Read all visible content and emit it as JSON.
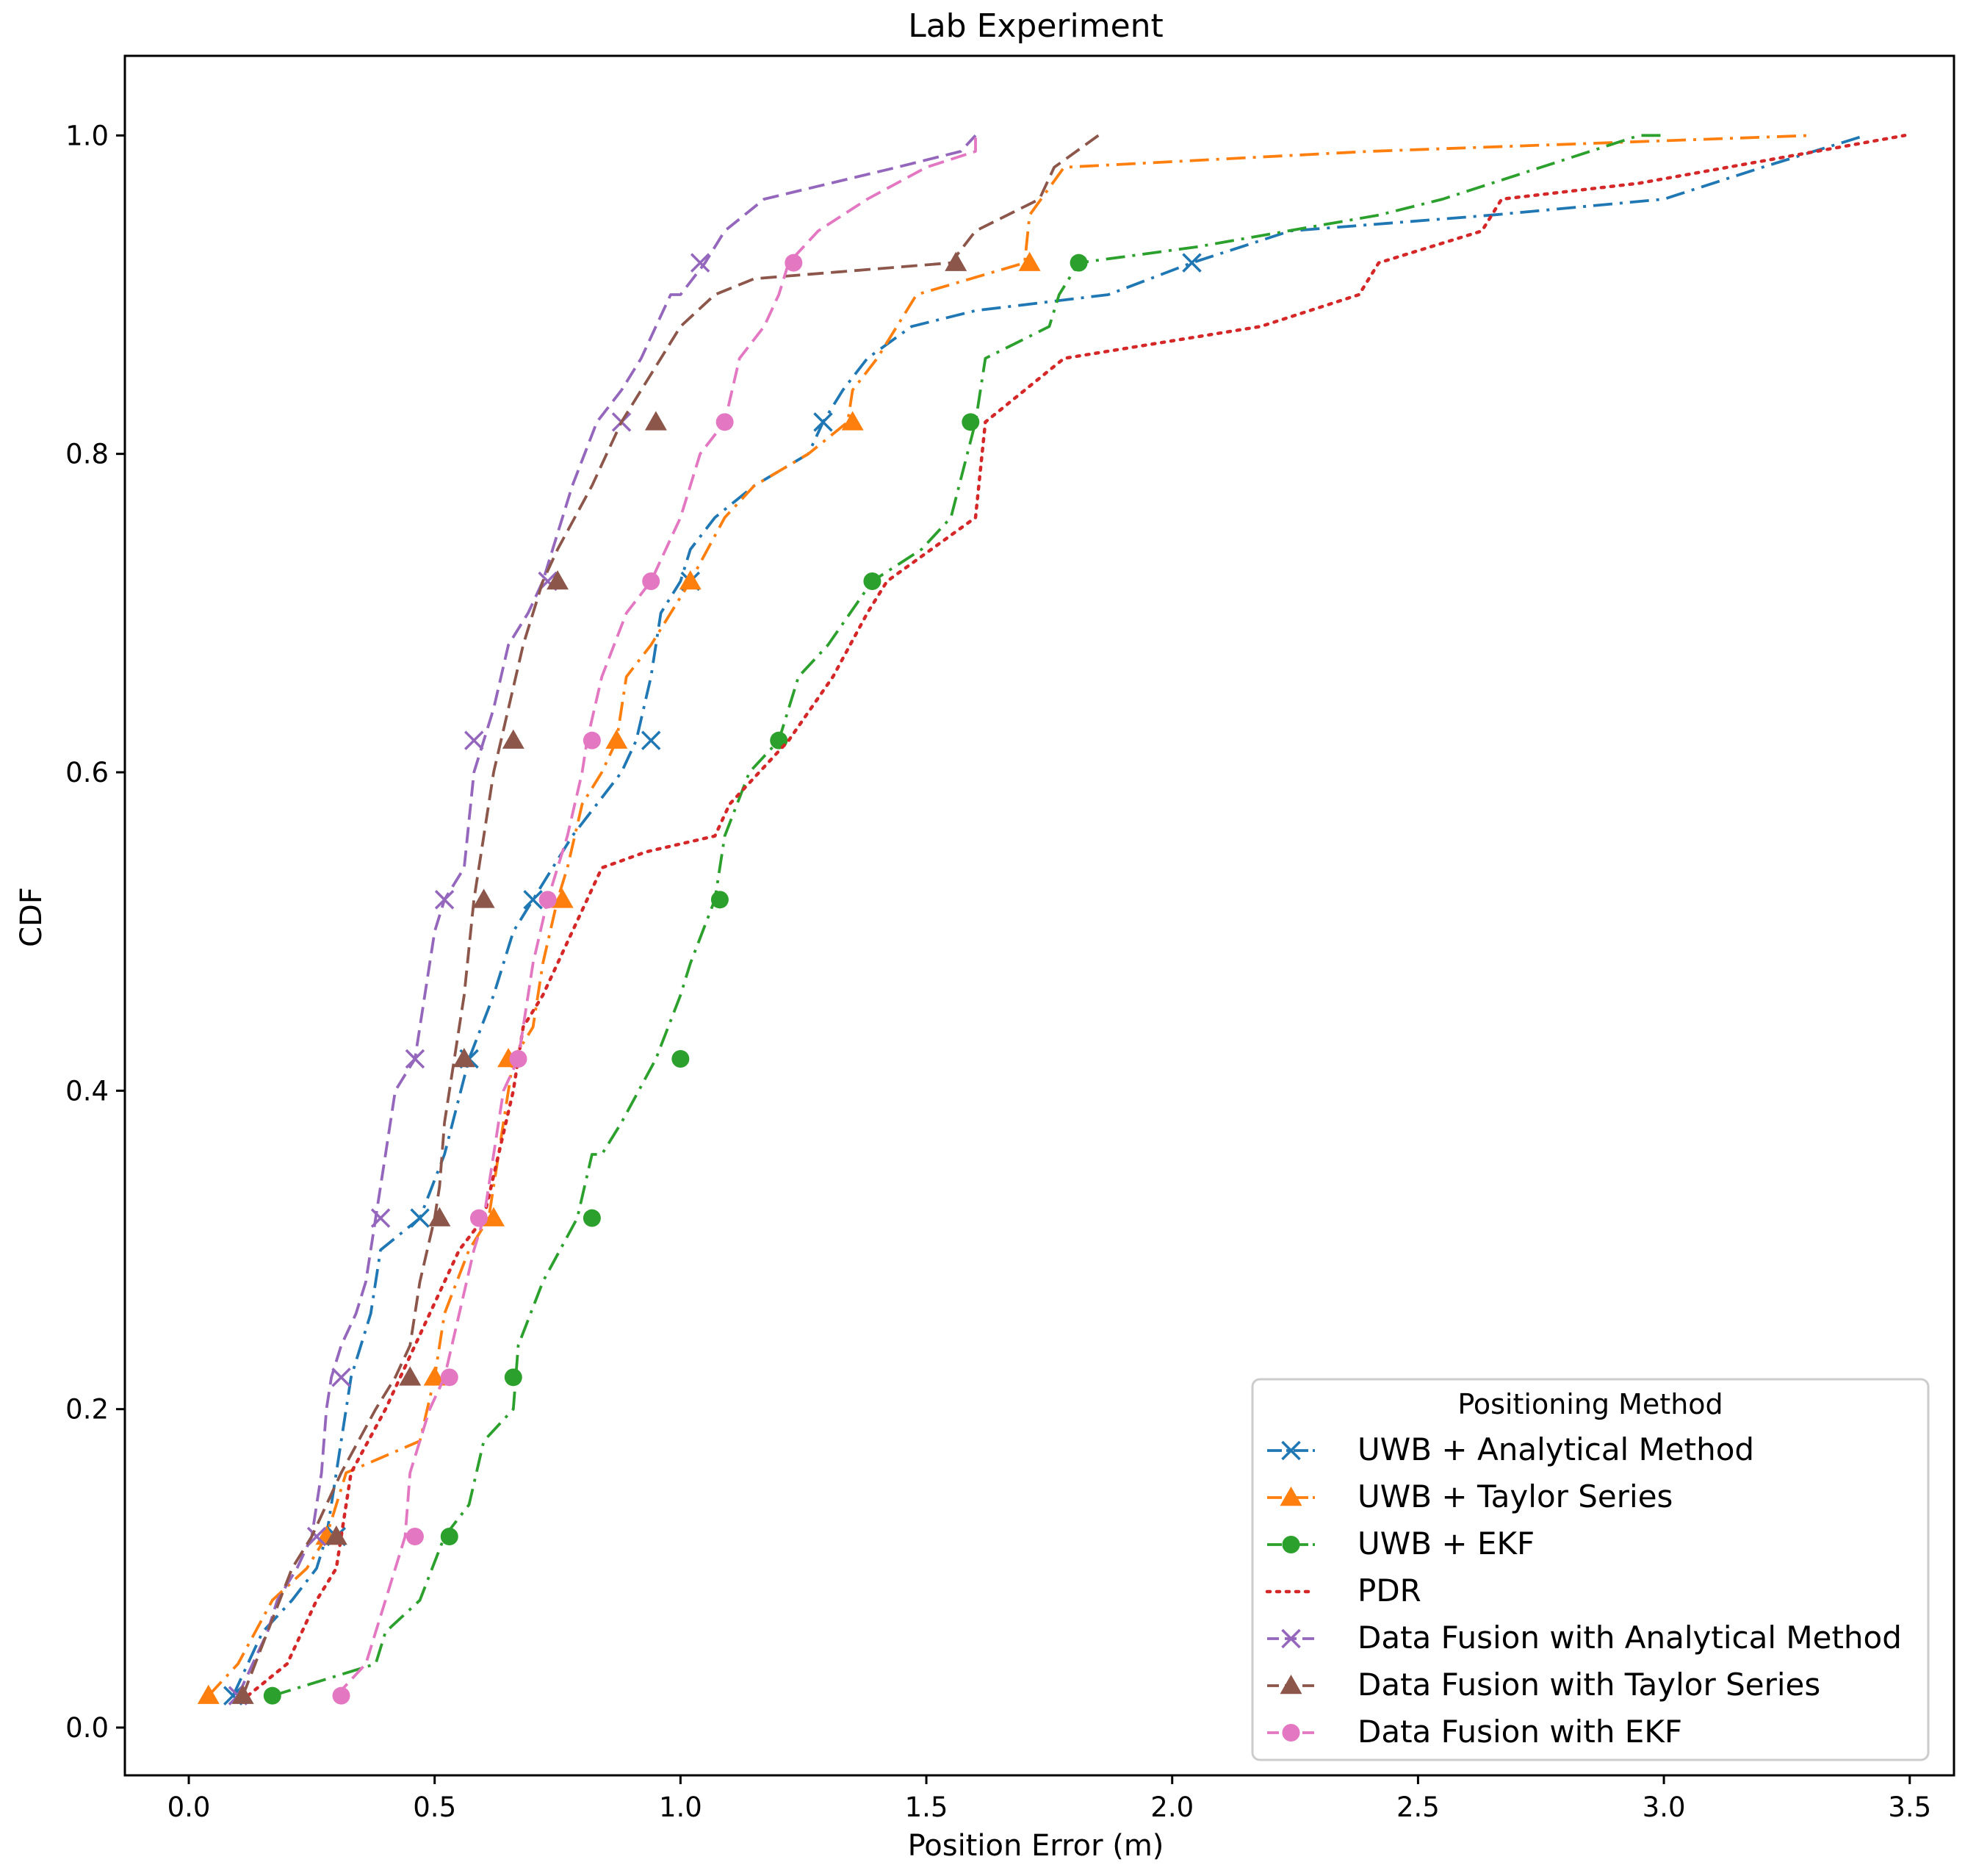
{
  "chart_data": {
    "type": "line",
    "title": "Lab Experiment",
    "xlabel": "Position Error (m)",
    "ylabel": "CDF",
    "xlim": [
      -0.13,
      3.59
    ],
    "ylim": [
      -0.03,
      1.05
    ],
    "xticks": [
      0.0,
      0.5,
      1.0,
      1.5,
      2.0,
      2.5,
      3.0,
      3.5
    ],
    "xtick_labels": [
      "0.0",
      "0.5",
      "1.0",
      "1.5",
      "2.0",
      "2.5",
      "3.0",
      "3.5"
    ],
    "yticks": [
      0.0,
      0.2,
      0.4,
      0.6,
      0.8,
      1.0
    ],
    "ytick_labels": [
      "0.0",
      "0.2",
      "0.4",
      "0.6",
      "0.8",
      "1.0"
    ],
    "grid": false,
    "legend": {
      "title": "Positioning Method",
      "placement": "bottom-right"
    },
    "series": [
      {
        "name": "UWB + Analytical Method",
        "color": "#1f77b4",
        "linestyle": "dashdot",
        "marker": "x",
        "x": [
          0.09,
          0.12,
          0.15,
          0.21,
          0.26,
          0.28,
          0.3,
          0.33,
          0.37,
          0.39,
          0.47,
          0.52,
          0.57,
          0.62,
          0.66,
          0.7,
          0.74,
          0.78,
          0.83,
          0.88,
          0.91,
          0.94,
          0.96,
          1.0,
          1.02,
          1.07,
          1.15,
          1.26,
          1.29,
          1.33,
          1.38,
          1.47,
          1.6,
          1.87,
          2.04,
          2.24,
          2.65,
          3.0,
          3.2,
          3.41
        ],
        "y": [
          0.02,
          0.04,
          0.06,
          0.08,
          0.1,
          0.12,
          0.16,
          0.22,
          0.26,
          0.3,
          0.32,
          0.36,
          0.42,
          0.46,
          0.5,
          0.52,
          0.54,
          0.56,
          0.58,
          0.6,
          0.62,
          0.66,
          0.7,
          0.72,
          0.74,
          0.76,
          0.78,
          0.8,
          0.82,
          0.84,
          0.86,
          0.88,
          0.89,
          0.9,
          0.92,
          0.94,
          0.95,
          0.96,
          0.98,
          1.0
        ],
        "marker_x": [
          0.09,
          0.3,
          0.47,
          0.57,
          0.7,
          0.94,
          1.02,
          1.29,
          2.04
        ],
        "marker_y": [
          0.02,
          0.12,
          0.32,
          0.42,
          0.52,
          0.62,
          0.72,
          0.82,
          0.92
        ]
      },
      {
        "name": "UWB + Taylor Series",
        "color": "#ff7f0e",
        "linestyle": "dashdot",
        "marker": "triangle",
        "x": [
          0.04,
          0.1,
          0.17,
          0.24,
          0.28,
          0.3,
          0.32,
          0.47,
          0.5,
          0.52,
          0.57,
          0.61,
          0.64,
          0.66,
          0.7,
          0.72,
          0.75,
          0.77,
          0.8,
          0.84,
          0.87,
          0.89,
          0.94,
          1.02,
          1.09,
          1.15,
          1.26,
          1.34,
          1.35,
          1.4,
          1.44,
          1.48,
          1.7,
          1.71,
          1.78,
          2.4,
          3.3
        ],
        "y": [
          0.02,
          0.04,
          0.08,
          0.1,
          0.12,
          0.14,
          0.16,
          0.18,
          0.22,
          0.26,
          0.3,
          0.32,
          0.38,
          0.42,
          0.44,
          0.48,
          0.52,
          0.54,
          0.58,
          0.6,
          0.62,
          0.66,
          0.68,
          0.72,
          0.76,
          0.78,
          0.8,
          0.82,
          0.84,
          0.86,
          0.88,
          0.9,
          0.92,
          0.95,
          0.98,
          0.99,
          1.0
        ],
        "marker_x": [
          0.04,
          0.28,
          0.62,
          0.65,
          0.76,
          0.87,
          1.02,
          1.35,
          1.71
        ],
        "marker_y": [
          0.02,
          0.12,
          0.32,
          0.42,
          0.52,
          0.62,
          0.72,
          0.82,
          0.92
        ],
        "marker_x_extra": [
          0.5
        ],
        "marker_y_extra": [
          0.22
        ]
      },
      {
        "name": "UWB + EKF",
        "color": "#2ca02c",
        "linestyle": "dashdot",
        "marker": "circle",
        "x": [
          0.17,
          0.38,
          0.4,
          0.47,
          0.52,
          0.57,
          0.6,
          0.66,
          0.67,
          0.72,
          0.79,
          0.82,
          0.84,
          0.88,
          0.95,
          1.0,
          1.02,
          1.07,
          1.09,
          1.14,
          1.2,
          1.24,
          1.3,
          1.39,
          1.49,
          1.55,
          1.6,
          1.62,
          1.75,
          1.77,
          1.81,
          2.05,
          2.42,
          2.55,
          2.75,
          2.95,
          3.0
        ],
        "y": [
          0.02,
          0.04,
          0.06,
          0.08,
          0.12,
          0.14,
          0.18,
          0.2,
          0.24,
          0.28,
          0.32,
          0.36,
          0.36,
          0.38,
          0.42,
          0.46,
          0.48,
          0.52,
          0.56,
          0.6,
          0.62,
          0.66,
          0.68,
          0.72,
          0.74,
          0.76,
          0.82,
          0.86,
          0.88,
          0.9,
          0.92,
          0.93,
          0.95,
          0.96,
          0.98,
          1.0,
          1.0
        ],
        "marker_x": [
          0.17,
          0.53,
          0.66,
          0.82,
          1.0,
          1.08,
          1.2,
          1.39,
          1.59,
          1.81
        ],
        "marker_y": [
          0.02,
          0.12,
          0.22,
          0.32,
          0.42,
          0.52,
          0.62,
          0.72,
          0.82,
          0.92
        ]
      },
      {
        "name": "PDR",
        "color": "#d62728",
        "linestyle": "dotted",
        "marker": "none",
        "x": [
          0.12,
          0.2,
          0.26,
          0.3,
          0.33,
          0.4,
          0.46,
          0.55,
          0.6,
          0.63,
          0.66,
          0.68,
          0.72,
          0.78,
          0.84,
          0.93,
          1.07,
          1.1,
          1.16,
          1.22,
          1.31,
          1.38,
          1.42,
          1.6,
          1.62,
          1.78,
          2.18,
          2.38,
          2.42,
          2.63,
          2.67,
          2.95,
          3.49
        ],
        "y": [
          0.02,
          0.04,
          0.08,
          0.1,
          0.16,
          0.2,
          0.24,
          0.3,
          0.32,
          0.36,
          0.4,
          0.44,
          0.46,
          0.5,
          0.54,
          0.55,
          0.56,
          0.58,
          0.6,
          0.62,
          0.66,
          0.7,
          0.72,
          0.76,
          0.82,
          0.86,
          0.88,
          0.9,
          0.92,
          0.94,
          0.96,
          0.97,
          1.0
        ],
        "marker_x": [],
        "marker_y": []
      },
      {
        "name": "Data Fusion with Analytical Method",
        "color": "#9467bd",
        "linestyle": "dashed",
        "marker": "x",
        "x": [
          0.1,
          0.13,
          0.16,
          0.18,
          0.22,
          0.25,
          0.27,
          0.28,
          0.29,
          0.31,
          0.34,
          0.36,
          0.38,
          0.4,
          0.42,
          0.46,
          0.48,
          0.5,
          0.52,
          0.56,
          0.58,
          0.6,
          0.62,
          0.65,
          0.69,
          0.72,
          0.74,
          0.78,
          0.83,
          0.88,
          0.92,
          0.95,
          0.98,
          1.0,
          1.05,
          1.09,
          1.17,
          1.44,
          1.57,
          1.6
        ],
        "y": [
          0.02,
          0.04,
          0.06,
          0.08,
          0.1,
          0.12,
          0.16,
          0.2,
          0.22,
          0.24,
          0.26,
          0.28,
          0.32,
          0.36,
          0.4,
          0.42,
          0.46,
          0.5,
          0.52,
          0.54,
          0.6,
          0.62,
          0.64,
          0.68,
          0.7,
          0.72,
          0.74,
          0.78,
          0.82,
          0.84,
          0.86,
          0.88,
          0.9,
          0.9,
          0.92,
          0.94,
          0.96,
          0.98,
          0.99,
          1.0
        ],
        "marker_x": [
          0.1,
          0.26,
          0.31,
          0.39,
          0.46,
          0.52,
          0.58,
          0.73,
          0.88,
          1.04
        ],
        "marker_y": [
          0.02,
          0.12,
          0.22,
          0.32,
          0.42,
          0.52,
          0.62,
          0.72,
          0.82,
          0.92
        ]
      },
      {
        "name": "Data Fusion with Taylor Series",
        "color": "#8c564b",
        "linestyle": "dashed",
        "marker": "triangle",
        "x": [
          0.11,
          0.16,
          0.21,
          0.25,
          0.28,
          0.31,
          0.38,
          0.42,
          0.45,
          0.47,
          0.5,
          0.51,
          0.52,
          0.54,
          0.56,
          0.58,
          0.6,
          0.62,
          0.65,
          0.68,
          0.72,
          0.75,
          0.82,
          0.88,
          0.92,
          0.96,
          1.0,
          1.07,
          1.15,
          1.55,
          1.6,
          1.73,
          1.76,
          1.85
        ],
        "y": [
          0.02,
          0.06,
          0.1,
          0.12,
          0.14,
          0.16,
          0.2,
          0.22,
          0.24,
          0.28,
          0.32,
          0.34,
          0.38,
          0.42,
          0.46,
          0.52,
          0.56,
          0.6,
          0.64,
          0.68,
          0.72,
          0.74,
          0.78,
          0.82,
          0.84,
          0.86,
          0.88,
          0.9,
          0.91,
          0.92,
          0.94,
          0.96,
          0.98,
          1.0
        ],
        "marker_x": [
          0.11,
          0.3,
          0.45,
          0.51,
          0.56,
          0.6,
          0.66,
          0.75,
          0.95,
          1.56
        ],
        "marker_y": [
          0.02,
          0.12,
          0.22,
          0.32,
          0.42,
          0.52,
          0.62,
          0.72,
          0.82,
          0.92
        ]
      },
      {
        "name": "Data Fusion with EKF",
        "color": "#e377c2",
        "linestyle": "dashed",
        "marker": "circle",
        "x": [
          0.3,
          0.36,
          0.4,
          0.44,
          0.45,
          0.47,
          0.49,
          0.52,
          0.55,
          0.58,
          0.6,
          0.62,
          0.64,
          0.67,
          0.7,
          0.73,
          0.77,
          0.8,
          0.81,
          0.84,
          0.89,
          0.94,
          1.0,
          1.04,
          1.09,
          1.12,
          1.17,
          1.2,
          1.22,
          1.28,
          1.38,
          1.5,
          1.6,
          1.6
        ],
        "y": [
          0.02,
          0.04,
          0.08,
          0.12,
          0.16,
          0.18,
          0.2,
          0.22,
          0.26,
          0.3,
          0.32,
          0.36,
          0.4,
          0.42,
          0.48,
          0.52,
          0.56,
          0.6,
          0.62,
          0.66,
          0.7,
          0.72,
          0.76,
          0.8,
          0.82,
          0.86,
          0.88,
          0.9,
          0.92,
          0.94,
          0.96,
          0.98,
          0.99,
          1.0
        ],
        "marker_x": [
          0.31,
          0.46,
          0.53,
          0.59,
          0.67,
          0.73,
          0.82,
          0.94,
          1.09,
          1.23
        ],
        "marker_y": [
          0.02,
          0.12,
          0.22,
          0.32,
          0.42,
          0.52,
          0.62,
          0.72,
          0.82,
          0.92
        ]
      }
    ]
  }
}
